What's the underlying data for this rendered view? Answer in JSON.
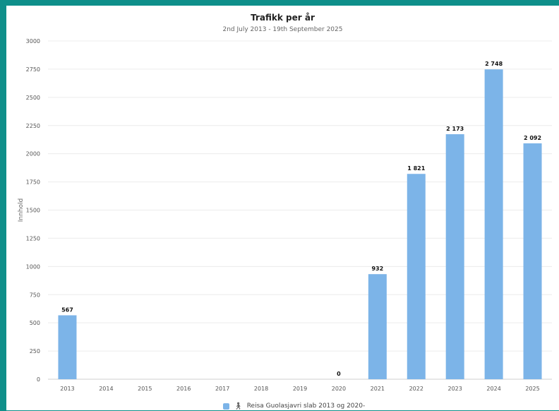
{
  "chart_data": {
    "type": "bar",
    "title": "Trafikk per år",
    "subtitle": "2nd July 2013 - 19th September 2025",
    "ylabel": "Innhold",
    "xlabel": "",
    "ylim": [
      0,
      3000
    ],
    "yticks": [
      "0",
      "250",
      "500",
      "750",
      "1000",
      "1250",
      "1500",
      "1750",
      "2000",
      "2250",
      "2500",
      "2750",
      "3000"
    ],
    "categories": [
      "2013",
      "2014",
      "2015",
      "2016",
      "2017",
      "2018",
      "2019",
      "2020",
      "2021",
      "2022",
      "2023",
      "2024",
      "2025"
    ],
    "values": [
      567,
      null,
      null,
      null,
      null,
      null,
      null,
      0,
      932,
      1821,
      2173,
      2748,
      2092
    ],
    "data_labels": [
      "567",
      "",
      "",
      "",
      "",
      "",
      "",
      "0",
      "932",
      "1 821",
      "2 173",
      "2 748",
      "2 092"
    ],
    "series": [
      {
        "name": "Reisa Guolasjavri slab 2013 og 2020-",
        "color": "#7cb4e8"
      }
    ],
    "grid": true,
    "legend": "bottom-center"
  },
  "legend_icon": "person-icon"
}
